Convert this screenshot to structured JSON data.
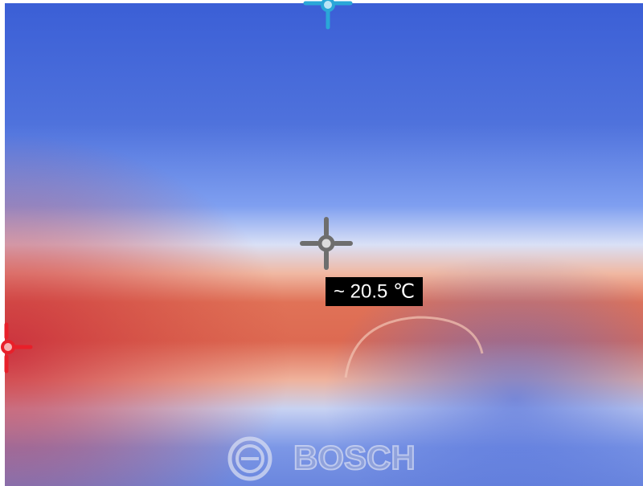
{
  "measurement": {
    "label": "~ 20.5 ℃"
  },
  "logo": {
    "text": "BOSCH"
  }
}
